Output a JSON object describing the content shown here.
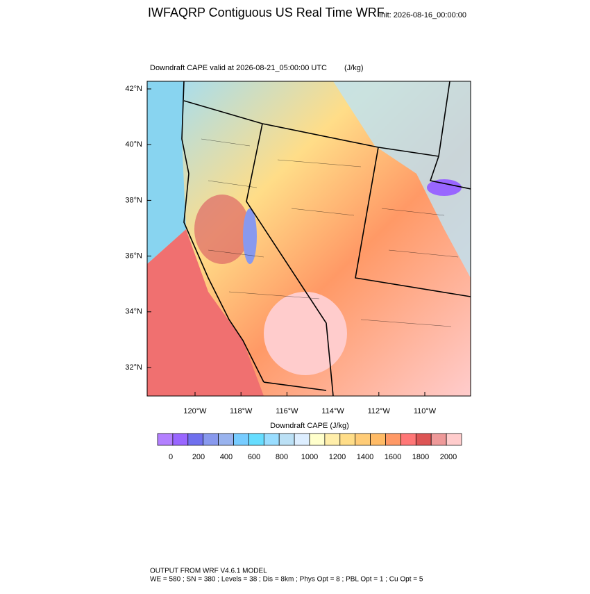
{
  "header": {
    "title": "IWFAQRP Contiguous US Real Time WRF",
    "init": "Init: 2026-08-16_00:00:00"
  },
  "map": {
    "subtitle": "Downdraft CAPE valid at 2026-08-21_05:00:00 UTC",
    "units": "(J/kg)",
    "lat_labels": [
      "42°N",
      "40°N",
      "38°N",
      "36°N",
      "34°N",
      "32°N"
    ],
    "lon_labels": [
      "120°W",
      "118°W",
      "116°W",
      "114°W",
      "112°W",
      "110°W"
    ]
  },
  "colorbar": {
    "title": "Downdraft CAPE  (J/kg)",
    "colors": [
      "#b380ff",
      "#9966ff",
      "#7070ee",
      "#8899ee",
      "#99b3ee",
      "#77ccff",
      "#66ddff",
      "#99ddff",
      "#bbe0f5",
      "#ddeeff",
      "#ffffcc",
      "#ffeeaa",
      "#ffdd88",
      "#ffcc77",
      "#ffbb66",
      "#ff9966",
      "#ff7777",
      "#dd5555",
      "#ee9999",
      "#ffcccc"
    ],
    "ticks": [
      0,
      200,
      400,
      600,
      800,
      1000,
      1200,
      1400,
      1600,
      1800,
      2000
    ]
  },
  "footer": {
    "line1": "OUTPUT FROM WRF V4.6.1 MODEL",
    "line2": "WE = 580 ; SN = 380 ; Levels = 38 ; Dis = 8km ; Phys Opt = 8 ; PBL Opt = 1 ; Cu Opt = 5"
  }
}
